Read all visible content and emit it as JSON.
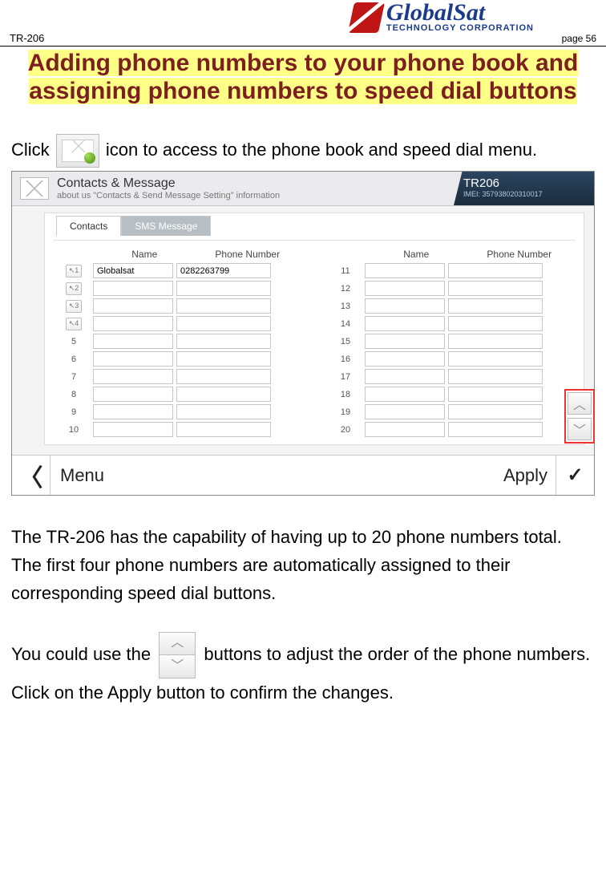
{
  "header": {
    "model": "TR-206",
    "page_label": "page 56",
    "logo_main": "GlobalSat",
    "logo_sub": "TECHNOLOGY CORPORATION"
  },
  "title": "Adding phone numbers to your phone book and assigning phone numbers to speed dial buttons",
  "para1_a": "Click ",
  "para1_b": " icon to access to the phone book and speed dial menu.",
  "para2": "The TR-206 has the capability of having up to 20 phone numbers total. The first four phone numbers are automatically assigned to their corresponding speed dial buttons.",
  "para3_a": "You could use the ",
  "para3_b": " buttons to adjust the order of the phone numbers. Click on the Apply button to confirm the changes.",
  "screenshot": {
    "top_title": "Contacts & Message",
    "top_subtitle": "about us \"Contacts & Send Message Setting\" information",
    "device_name": "TR206",
    "imei": "IMEI: 357938020310017",
    "tabs": {
      "contacts": "Contacts",
      "sms": "SMS Message"
    },
    "columns": {
      "name": "Name",
      "phone": "Phone Number"
    },
    "left_rows": [
      {
        "idx": "1",
        "speed": true,
        "name": "Globalsat",
        "phone": "0282263799"
      },
      {
        "idx": "2",
        "speed": true,
        "name": "",
        "phone": ""
      },
      {
        "idx": "3",
        "speed": true,
        "name": "",
        "phone": ""
      },
      {
        "idx": "4",
        "speed": true,
        "name": "",
        "phone": ""
      },
      {
        "idx": "5",
        "speed": false,
        "name": "",
        "phone": ""
      },
      {
        "idx": "6",
        "speed": false,
        "name": "",
        "phone": ""
      },
      {
        "idx": "7",
        "speed": false,
        "name": "",
        "phone": ""
      },
      {
        "idx": "8",
        "speed": false,
        "name": "",
        "phone": ""
      },
      {
        "idx": "9",
        "speed": false,
        "name": "",
        "phone": ""
      },
      {
        "idx": "10",
        "speed": false,
        "name": "",
        "phone": ""
      }
    ],
    "right_rows": [
      {
        "idx": "11",
        "name": "",
        "phone": ""
      },
      {
        "idx": "12",
        "name": "",
        "phone": ""
      },
      {
        "idx": "13",
        "name": "",
        "phone": ""
      },
      {
        "idx": "14",
        "name": "",
        "phone": ""
      },
      {
        "idx": "15",
        "name": "",
        "phone": ""
      },
      {
        "idx": "16",
        "name": "",
        "phone": ""
      },
      {
        "idx": "17",
        "name": "",
        "phone": ""
      },
      {
        "idx": "18",
        "name": "",
        "phone": ""
      },
      {
        "idx": "19",
        "name": "",
        "phone": ""
      },
      {
        "idx": "20",
        "name": "",
        "phone": ""
      }
    ],
    "footer": {
      "menu": "Menu",
      "apply": "Apply"
    }
  },
  "colors": {
    "title_text": "#7c1f1f",
    "highlight": "#feff87",
    "device_panel_top": "#2b4560",
    "device_panel_bottom": "#1b2c3d",
    "redbox": "#e33"
  }
}
